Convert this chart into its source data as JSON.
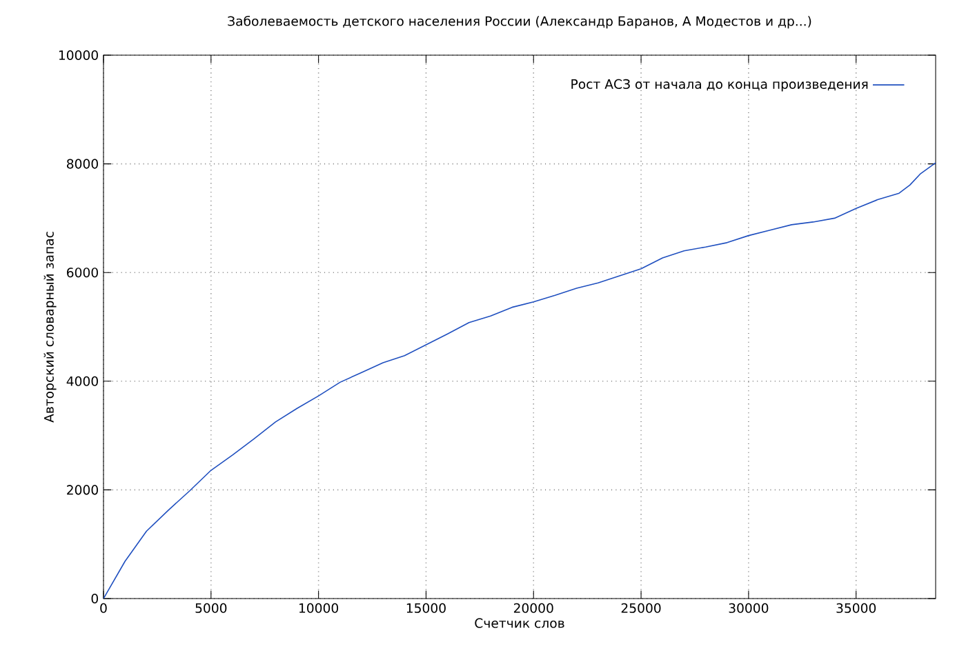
{
  "chart_data": {
    "type": "line",
    "title": "Заболеваемость детского населения России (Александр Баранов, А Модестов и др...)",
    "xlabel": "Счетчик слов",
    "ylabel": "Авторский словарный запас",
    "x": [
      0,
      1000,
      2000,
      3000,
      4000,
      5000,
      6000,
      7000,
      8000,
      9000,
      10000,
      11000,
      12000,
      13000,
      14000,
      15000,
      16000,
      17000,
      18000,
      19000,
      20000,
      21000,
      22000,
      23000,
      24000,
      25000,
      26000,
      27000,
      28000,
      29000,
      30000,
      31000,
      32000,
      33000,
      34000,
      35000,
      36000,
      37000,
      37500,
      38000,
      38700
    ],
    "series": [
      {
        "name": "Рост АСЗ от начала до конца произведения",
        "color": "#1f4fbf",
        "values": [
          0,
          685,
          1240,
          1620,
          1980,
          2360,
          2640,
          2940,
          3250,
          3500,
          3730,
          3980,
          4160,
          4340,
          4470,
          4670,
          4870,
          5080,
          5200,
          5360,
          5460,
          5580,
          5710,
          5810,
          5940,
          6070,
          6270,
          6400,
          6470,
          6550,
          6680,
          6780,
          6880,
          6930,
          7000,
          7180,
          7340,
          7460,
          7610,
          7820,
          8020
        ]
      }
    ],
    "xlim": [
      0,
      38700
    ],
    "ylim": [
      0,
      10000
    ],
    "xticks": [
      0,
      5000,
      10000,
      15000,
      20000,
      25000,
      30000,
      35000
    ],
    "yticks": [
      0,
      2000,
      4000,
      6000,
      8000,
      10000
    ],
    "grid": true,
    "legend": "top right",
    "marker": "none",
    "line_style": "solid"
  }
}
